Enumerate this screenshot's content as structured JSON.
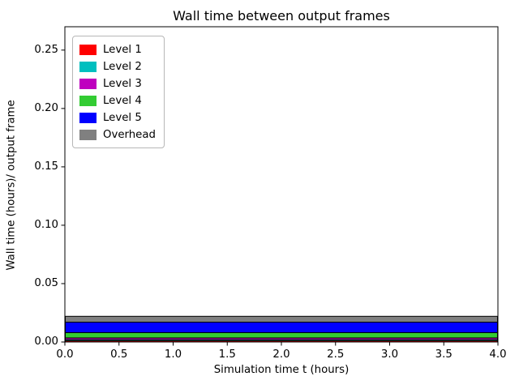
{
  "figure": {
    "title": "Wall time between output frames",
    "xlabel": "Simulation time t (hours)",
    "ylabel": "Wall time (hours)/ output frame"
  },
  "chart_data": {
    "type": "area",
    "stacked": true,
    "title": "Wall time between output frames",
    "xlabel": "Simulation time t (hours)",
    "ylabel": "Wall time (hours)/ output frame",
    "x": [
      0.0,
      4.0
    ],
    "series": [
      {
        "name": "Level 1",
        "color": "#ff0000",
        "values": [
          0.001,
          0.001
        ]
      },
      {
        "name": "Level 2",
        "color": "#00bfbf",
        "values": [
          0.001,
          0.001
        ]
      },
      {
        "name": "Level 3",
        "color": "#bf00bf",
        "values": [
          0.0015,
          0.0015
        ]
      },
      {
        "name": "Level 4",
        "color": "#33cc33",
        "values": [
          0.0045,
          0.0045
        ]
      },
      {
        "name": "Level 5",
        "color": "#0000ff",
        "values": [
          0.009,
          0.009
        ]
      },
      {
        "name": "Overhead",
        "color": "#808080",
        "values": [
          0.005,
          0.005
        ]
      }
    ],
    "edge_color": "#000000",
    "xlim": [
      0.0,
      4.0
    ],
    "ylim": [
      0.0,
      0.27
    ],
    "x_ticks": [
      0.0,
      0.5,
      1.0,
      1.5,
      2.0,
      2.5,
      3.0,
      3.5,
      4.0
    ],
    "x_tick_labels": [
      "0.0",
      "0.5",
      "1.0",
      "1.5",
      "2.0",
      "2.5",
      "3.0",
      "3.5",
      "4.0"
    ],
    "y_ticks": [
      0.0,
      0.05,
      0.1,
      0.15,
      0.2,
      0.25
    ],
    "y_tick_labels": [
      "0.00",
      "0.05",
      "0.10",
      "0.15",
      "0.20",
      "0.25"
    ],
    "legend_position": "upper left",
    "grid": false,
    "background": "#ffffff"
  }
}
